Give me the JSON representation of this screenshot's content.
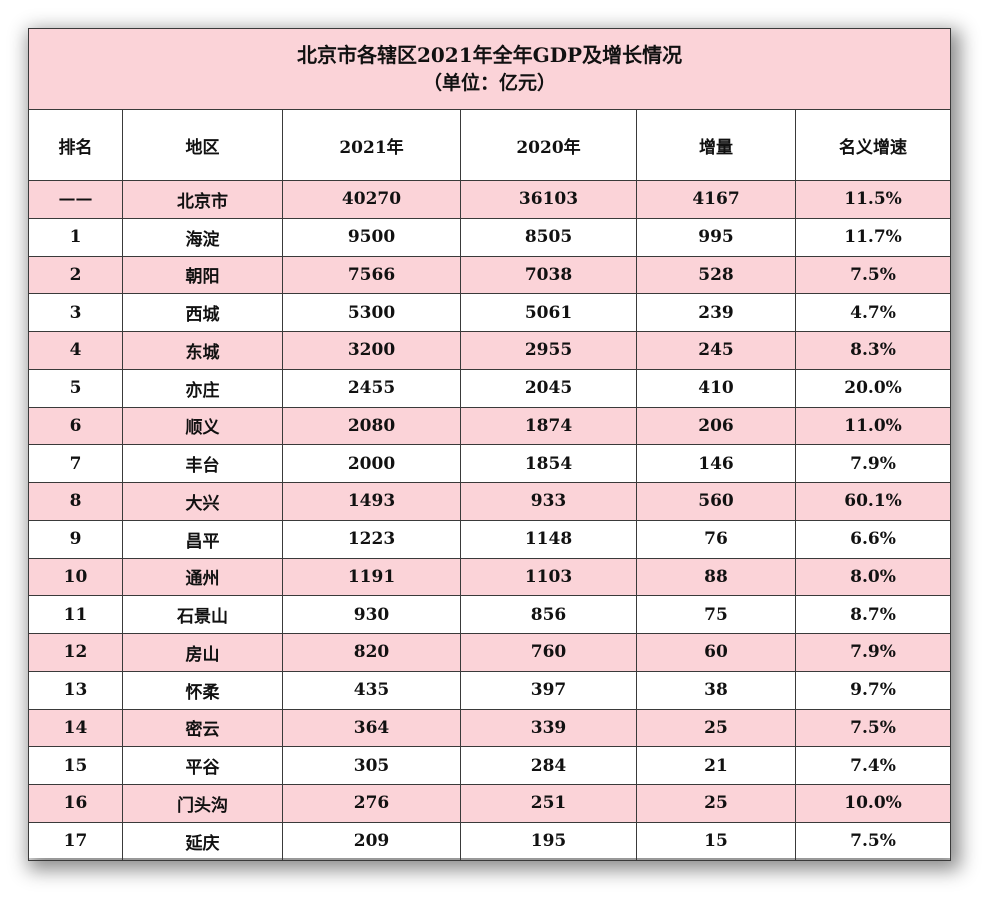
{
  "table": {
    "title": "北京市各辖区2021年全年GDP及增长情况",
    "unit": "（单位：亿元）",
    "headers": [
      "排名",
      "地区",
      "2021年",
      "2020年",
      "增量",
      "名义增速"
    ],
    "rows": [
      [
        "——",
        "北京市",
        "40270",
        "36103",
        "4167",
        "11.5%"
      ],
      [
        "1",
        "海淀",
        "9500",
        "8505",
        "995",
        "11.7%"
      ],
      [
        "2",
        "朝阳",
        "7566",
        "7038",
        "528",
        "7.5%"
      ],
      [
        "3",
        "西城",
        "5300",
        "5061",
        "239",
        "4.7%"
      ],
      [
        "4",
        "东城",
        "3200",
        "2955",
        "245",
        "8.3%"
      ],
      [
        "5",
        "亦庄",
        "2455",
        "2045",
        "410",
        "20.0%"
      ],
      [
        "6",
        "顺义",
        "2080",
        "1874",
        "206",
        "11.0%"
      ],
      [
        "7",
        "丰台",
        "2000",
        "1854",
        "146",
        "7.9%"
      ],
      [
        "8",
        "大兴",
        "1493",
        "933",
        "560",
        "60.1%"
      ],
      [
        "9",
        "昌平",
        "1223",
        "1148",
        "76",
        "6.6%"
      ],
      [
        "10",
        "通州",
        "1191",
        "1103",
        "88",
        "8.0%"
      ],
      [
        "11",
        "石景山",
        "930",
        "856",
        "75",
        "8.7%"
      ],
      [
        "12",
        "房山",
        "820",
        "760",
        "60",
        "7.9%"
      ],
      [
        "13",
        "怀柔",
        "435",
        "397",
        "38",
        "9.7%"
      ],
      [
        "14",
        "密云",
        "364",
        "339",
        "25",
        "7.5%"
      ],
      [
        "15",
        "平谷",
        "305",
        "284",
        "21",
        "7.4%"
      ],
      [
        "16",
        "门头沟",
        "276",
        "251",
        "25",
        "10.0%"
      ],
      [
        "17",
        "延庆",
        "209",
        "195",
        "15",
        "7.5%"
      ]
    ]
  },
  "colors": {
    "highlight_row": "#fbd3d8",
    "border": "#3a3a3a",
    "text": "#111111"
  }
}
